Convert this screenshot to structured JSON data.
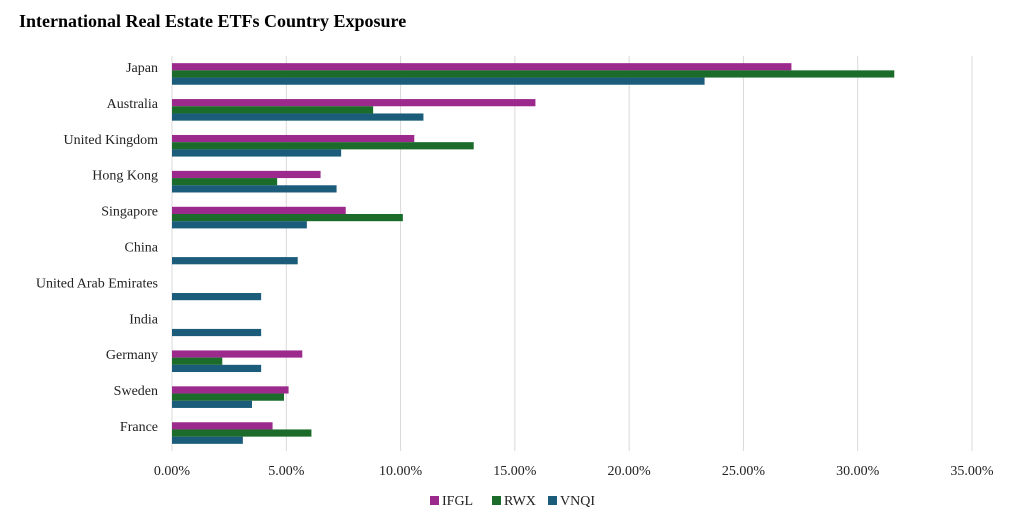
{
  "chart_data": {
    "type": "bar",
    "orientation": "horizontal",
    "title": "International Real Estate ETFs Country Exposure",
    "categories": [
      "Japan",
      "Australia",
      "United Kingdom",
      "Hong Kong",
      "Singapore",
      "China",
      "United Arab Emirates",
      "India",
      "Germany",
      "Sweden",
      "France"
    ],
    "series": [
      {
        "name": "IFGL",
        "color": "#9c2a8c",
        "values": [
          0.271,
          0.159,
          0.106,
          0.065,
          0.076,
          0.0,
          0.0,
          0.0,
          0.057,
          0.051,
          0.044
        ]
      },
      {
        "name": "RWX",
        "color": "#1b6b2a",
        "values": [
          0.316,
          0.088,
          0.132,
          0.046,
          0.101,
          0.0,
          0.0,
          0.0,
          0.022,
          0.049,
          0.061
        ]
      },
      {
        "name": "VNQI",
        "color": "#1a5c7a",
        "values": [
          0.233,
          0.11,
          0.074,
          0.072,
          0.059,
          0.055,
          0.039,
          0.039,
          0.039,
          0.035,
          0.031
        ]
      }
    ],
    "xlim": [
      0,
      0.35
    ],
    "x_ticks": [
      "0.00%",
      "5.00%",
      "10.00%",
      "15.00%",
      "20.00%",
      "25.00%",
      "30.00%",
      "35.00%"
    ],
    "grid": true,
    "legend_position": "bottom-center"
  }
}
